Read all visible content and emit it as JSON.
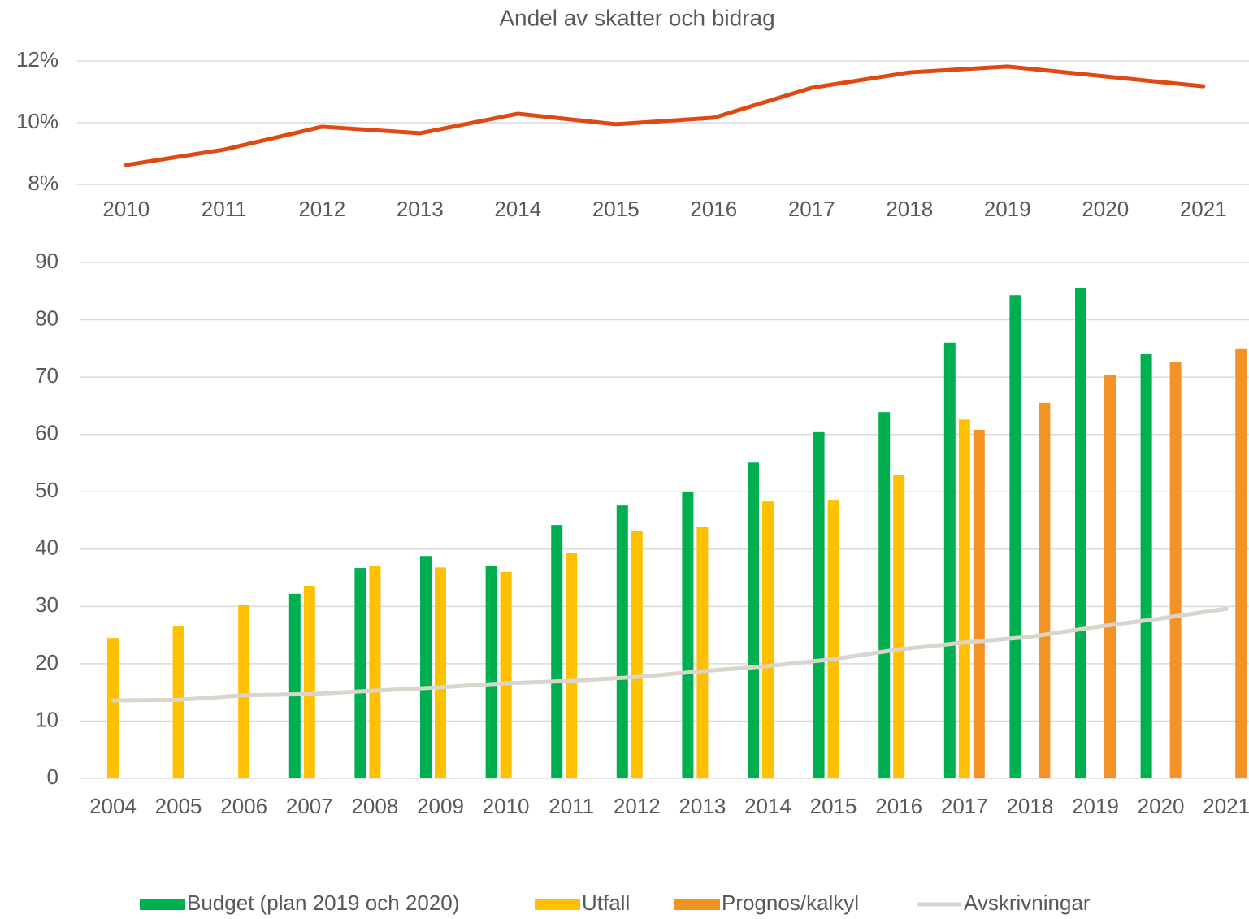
{
  "chart_data": [
    {
      "type": "line",
      "title": "Andel av skatter och bidrag",
      "categories": [
        "2010",
        "2011",
        "2012",
        "2013",
        "2014",
        "2015",
        "2016",
        "2017",
        "2018",
        "2019",
        "2020",
        "2021"
      ],
      "values": [
        8.63,
        9.13,
        9.87,
        9.66,
        10.29,
        9.95,
        10.16,
        11.13,
        11.63,
        11.82,
        11.5,
        11.18
      ],
      "color": "#e04a12",
      "ylim": [
        8,
        12
      ],
      "yticks": [
        {
          "value": 8,
          "label": "8%"
        },
        {
          "value": 10,
          "label": "10%"
        },
        {
          "value": 12,
          "label": "12%"
        }
      ],
      "grid": true
    },
    {
      "type": "bar",
      "categories": [
        "2004",
        "2005",
        "2006",
        "2007",
        "2008",
        "2009",
        "2010",
        "2011",
        "2012",
        "2013",
        "2014",
        "2015",
        "2016",
        "2017",
        "2018",
        "2019",
        "2020",
        "2021"
      ],
      "series": [
        {
          "name": "Budget (plan 2019 och 2020)",
          "color": "#00b050",
          "values": [
            null,
            null,
            null,
            32.2,
            36.7,
            38.8,
            37.0,
            44.2,
            47.6,
            50.0,
            55.1,
            60.4,
            63.9,
            76.0,
            84.3,
            85.5,
            74.0,
            null
          ]
        },
        {
          "name": "Utfall",
          "color": "#ffc000",
          "values": [
            24.5,
            26.6,
            30.3,
            33.6,
            37.0,
            36.8,
            36.0,
            39.3,
            43.2,
            43.9,
            48.3,
            48.6,
            52.9,
            62.6,
            null,
            null,
            null,
            null
          ]
        },
        {
          "name": "Prognos/kalkyl",
          "color": "#f39325",
          "values": [
            null,
            null,
            null,
            null,
            null,
            null,
            null,
            null,
            null,
            null,
            null,
            null,
            null,
            60.8,
            65.5,
            70.4,
            72.7,
            75.0
          ]
        },
        {
          "name": "Avskrivningar",
          "color": "#d9d4cc",
          "type": "line",
          "values": [
            13.6,
            13.7,
            14.5,
            14.7,
            15.3,
            15.9,
            16.6,
            17.0,
            17.7,
            18.7,
            19.6,
            20.8,
            22.5,
            23.7,
            24.7,
            26.4,
            27.9,
            29.6
          ]
        }
      ],
      "ylim": [
        0,
        90
      ],
      "yticks": [
        0,
        10,
        20,
        30,
        40,
        50,
        60,
        70,
        80,
        90
      ],
      "grid": true,
      "legend": "bottom"
    }
  ]
}
